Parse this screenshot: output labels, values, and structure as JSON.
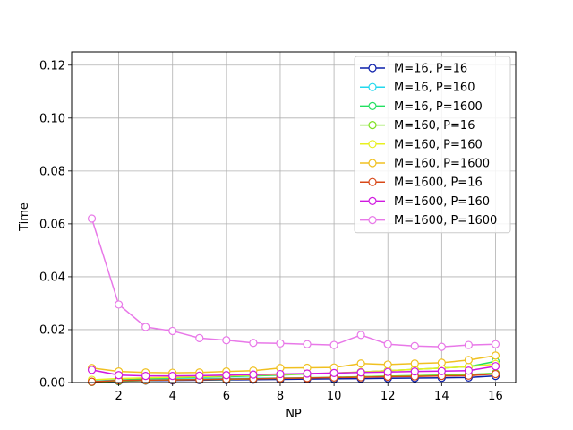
{
  "chart_data": {
    "type": "line",
    "xlabel": "NP",
    "ylabel": "Time",
    "xlim": [
      0.25,
      16.75
    ],
    "ylim": [
      0.0,
      0.125
    ],
    "xticks": [
      2,
      4,
      6,
      8,
      10,
      12,
      14,
      16
    ],
    "xtick_labels": [
      "2",
      "4",
      "6",
      "8",
      "10",
      "12",
      "14",
      "16"
    ],
    "yticks": [
      0.0,
      0.02,
      0.04,
      0.06,
      0.08,
      0.1,
      0.12
    ],
    "ytick_labels": [
      "0.00",
      "0.02",
      "0.04",
      "0.06",
      "0.08",
      "0.10",
      "0.12"
    ],
    "grid": true,
    "legend_position": "top-right",
    "x": [
      1,
      2,
      3,
      4,
      5,
      6,
      7,
      8,
      9,
      10,
      11,
      12,
      13,
      14,
      15,
      16
    ],
    "series": [
      {
        "name": "M=16, P=16",
        "color": "#0a1eaa",
        "values": [
          0.0003,
          0.0005,
          0.0007,
          0.0008,
          0.0009,
          0.001,
          0.0011,
          0.0012,
          0.0013,
          0.0014,
          0.0015,
          0.0016,
          0.0017,
          0.0018,
          0.0019,
          0.0025
        ]
      },
      {
        "name": "M=16, P=160",
        "color": "#22d8ee",
        "values": [
          0.0005,
          0.001,
          0.0012,
          0.0013,
          0.0014,
          0.0015,
          0.0016,
          0.0017,
          0.0018,
          0.0019,
          0.0022,
          0.0024,
          0.0026,
          0.0028,
          0.003,
          0.0035
        ]
      },
      {
        "name": "M=16, P=1600",
        "color": "#22e060",
        "values": [
          0.0002,
          0.0008,
          0.0015,
          0.0018,
          0.002,
          0.0022,
          0.0025,
          0.0028,
          0.0032,
          0.0035,
          0.004,
          0.0045,
          0.005,
          0.0055,
          0.006,
          0.008
        ]
      },
      {
        "name": "M=160, P=16",
        "color": "#7ee020",
        "values": [
          0.0003,
          0.0006,
          0.0008,
          0.001,
          0.0011,
          0.0012,
          0.0014,
          0.0016,
          0.0018,
          0.002,
          0.0022,
          0.0024,
          0.0026,
          0.0028,
          0.003,
          0.0035
        ]
      },
      {
        "name": "M=160, P=160",
        "color": "#e8f020",
        "values": [
          0.001,
          0.0015,
          0.0018,
          0.002,
          0.0022,
          0.0025,
          0.0028,
          0.003,
          0.0033,
          0.0036,
          0.004,
          0.0045,
          0.005,
          0.0055,
          0.006,
          0.007
        ]
      },
      {
        "name": "M=160, P=1600",
        "color": "#f0c020",
        "values": [
          0.0055,
          0.0042,
          0.0038,
          0.0037,
          0.0038,
          0.0042,
          0.0045,
          0.0055,
          0.0056,
          0.0057,
          0.0072,
          0.0068,
          0.0072,
          0.0075,
          0.0085,
          0.0102
        ]
      },
      {
        "name": "M=1600, P=16",
        "color": "#d84818",
        "values": [
          0.0003,
          0.0008,
          0.0009,
          0.001,
          0.0011,
          0.0013,
          0.0014,
          0.0016,
          0.0017,
          0.0019,
          0.002,
          0.0022,
          0.0023,
          0.0025,
          0.0026,
          0.0032
        ]
      },
      {
        "name": "M=1600, P=160",
        "color": "#d018e0",
        "values": [
          0.0048,
          0.0028,
          0.0025,
          0.0025,
          0.0026,
          0.0028,
          0.003,
          0.0032,
          0.0034,
          0.0036,
          0.0038,
          0.004,
          0.0042,
          0.0043,
          0.0045,
          0.0062
        ]
      },
      {
        "name": "M=1600, P=1600",
        "color": "#e878e8",
        "values": [
          0.062,
          0.0295,
          0.021,
          0.0195,
          0.0168,
          0.016,
          0.015,
          0.0148,
          0.0145,
          0.0142,
          0.018,
          0.0145,
          0.0138,
          0.0135,
          0.0142,
          0.0145
        ]
      }
    ]
  }
}
